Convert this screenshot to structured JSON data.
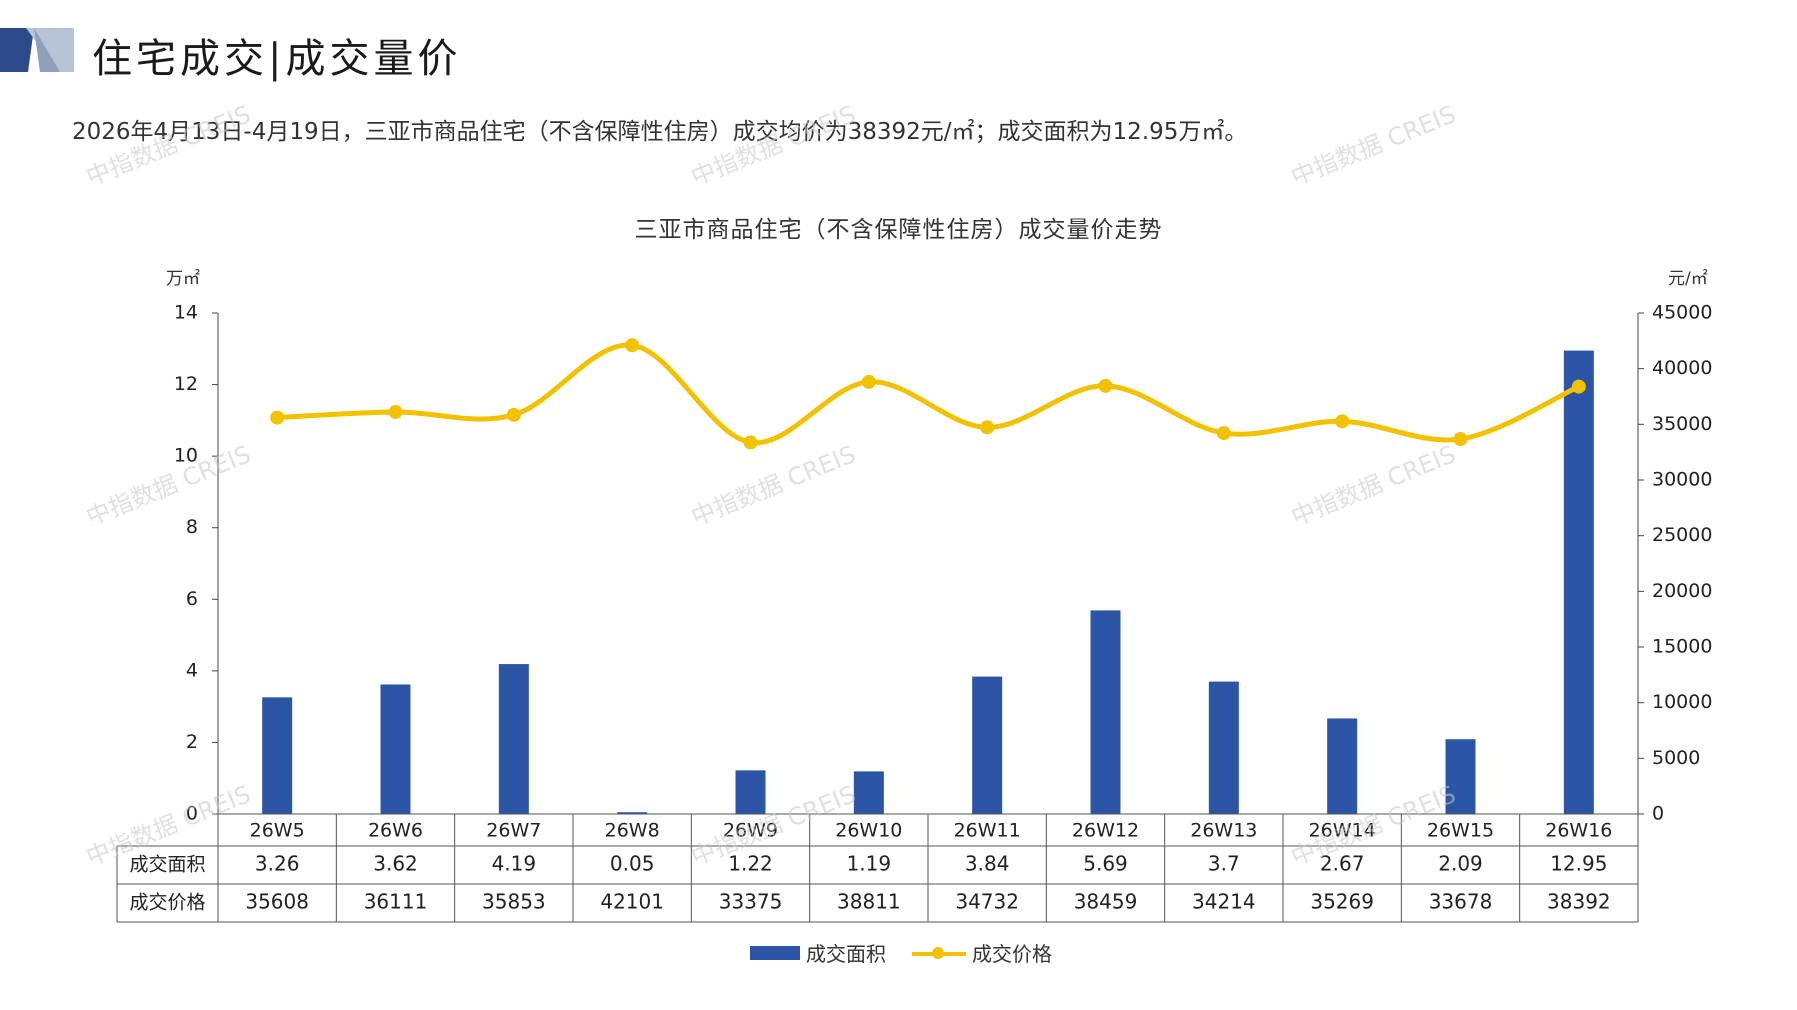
{
  "header": {
    "title": "住宅成交|成交量价"
  },
  "subtitle": "2026年4月13日-4月19日，三亚市商品住宅（不含保障性住房）成交均价为38392元/㎡；成交面积为12.95万㎡。",
  "watermark_text": "中指数据 CREIS",
  "colors": {
    "bar": "#2d55a5",
    "line": "#f2c200",
    "logo_dark": "#2d4a8a",
    "logo_light": "#b8c4d6"
  },
  "chart_data": {
    "type": "bar+line",
    "title": "三亚市商品住宅（不含保障性住房）成交量价走势",
    "y_left_unit": "万㎡",
    "y_right_unit": "元/㎡",
    "y_left_lim": [
      0,
      14
    ],
    "y_left_ticks": [
      "0",
      "2",
      "4",
      "6",
      "8",
      "10",
      "12",
      "14"
    ],
    "y_right_lim": [
      0,
      45000
    ],
    "y_right_ticks": [
      "0",
      "5000",
      "10000",
      "15000",
      "20000",
      "25000",
      "30000",
      "35000",
      "40000",
      "45000"
    ],
    "categories": [
      "26W5",
      "26W6",
      "26W7",
      "26W8",
      "26W9",
      "26W10",
      "26W11",
      "26W12",
      "26W13",
      "26W14",
      "26W15",
      "26W16"
    ],
    "series": [
      {
        "name": "成交面积",
        "type": "bar",
        "axis": "left",
        "values": [
          3.26,
          3.62,
          4.19,
          0.05,
          1.22,
          1.19,
          3.84,
          5.69,
          3.7,
          2.67,
          2.09,
          12.95
        ],
        "labels": [
          "3.26",
          "3.62",
          "4.19",
          "0.05",
          "1.22",
          "1.19",
          "3.84",
          "5.69",
          "3.7",
          "2.67",
          "2.09",
          "12.95"
        ]
      },
      {
        "name": "成交价格",
        "type": "line",
        "axis": "right",
        "values": [
          35608,
          36111,
          35853,
          42101,
          33375,
          38811,
          34732,
          38459,
          34214,
          35269,
          33678,
          38392
        ],
        "labels": [
          "35608",
          "36111",
          "35853",
          "42101",
          "33375",
          "38811",
          "34732",
          "38459",
          "34214",
          "35269",
          "33678",
          "38392"
        ]
      }
    ],
    "legend": "bottom-center",
    "grid": false
  }
}
